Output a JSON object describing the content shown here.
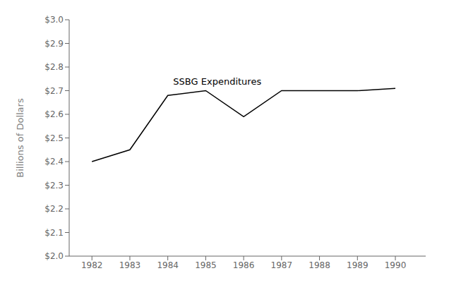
{
  "chart_data": {
    "type": "line",
    "x": [
      1982,
      1983,
      1984,
      1985,
      1986,
      1987,
      1988,
      1989,
      1990
    ],
    "values": [
      2.4,
      2.45,
      2.68,
      2.7,
      2.59,
      2.7,
      2.7,
      2.7,
      2.71
    ],
    "color": "#000000",
    "ylabel": "Billions of Dollars",
    "annotations": [
      {
        "text": "SSBG Expenditures",
        "x": 1984.05,
        "y": 2.738
      }
    ],
    "xlim": [
      1981.4,
      1990.8
    ],
    "xticks": [
      1982,
      1983,
      1984,
      1985,
      1986,
      1987,
      1988,
      1989,
      1990
    ],
    "ylim": [
      2.0,
      3.0
    ],
    "yticks": [
      {
        "value": 2.0,
        "label": "$2.0"
      },
      {
        "value": 2.1,
        "label": "$2.1"
      },
      {
        "value": 2.2,
        "label": "$2.2"
      },
      {
        "value": 2.3,
        "label": "$2.3"
      },
      {
        "value": 2.4,
        "label": "$2.4"
      },
      {
        "value": 2.5,
        "label": "$2.5"
      },
      {
        "value": 2.6,
        "label": "$2.6"
      },
      {
        "value": 2.7,
        "label": "$2.7"
      },
      {
        "value": 2.8,
        "label": "$2.8"
      },
      {
        "value": 2.9,
        "label": "$2.9"
      },
      {
        "value": 3.0,
        "label": "$3.0"
      }
    ],
    "grid": false
  }
}
